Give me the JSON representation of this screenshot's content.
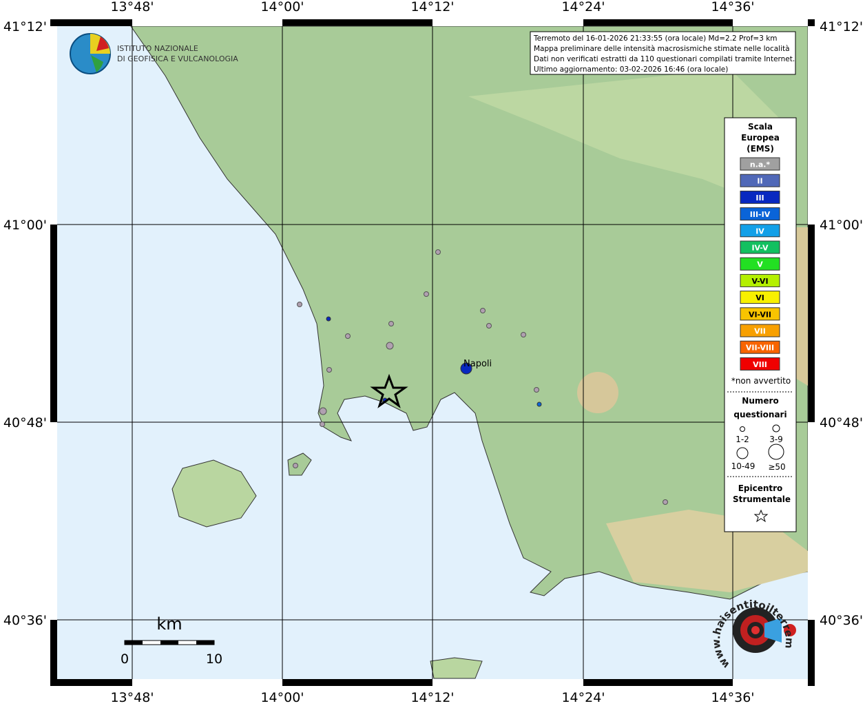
{
  "header": {
    "institute": [
      "ISTITUTO NAZIONALE",
      "DI GEOFISICA E VULCANOLOGIA"
    ],
    "info": [
      "Terremoto del 16-01-2026 21:33:55 (ora locale) Md=2.2 Prof=3 km",
      "Mappa preliminare delle intensità macrosismiche stimate nelle località",
      "Dati non verificati estratti da 110 questionari compilati tramite Internet.",
      "Ultimo aggiornamento: 03-02-2026 16:46 (ora locale)"
    ]
  },
  "map": {
    "lon_labels": [
      "13°48'",
      "14°00'",
      "14°12'",
      "14°24'",
      "14°36'"
    ],
    "lat_labels": [
      "41°12'",
      "41°00'",
      "40°48'",
      "40°36'"
    ],
    "city": "Napoli",
    "scale_bar": {
      "unit": "km",
      "labels": [
        "0",
        "10"
      ]
    },
    "site": "www.haisentitoilterremoto.it"
  },
  "legend": {
    "title": [
      "Scala",
      "Europea",
      "(EMS)"
    ],
    "classes": [
      {
        "label": "n.a.*",
        "color": "#a0a0a0"
      },
      {
        "label": "II",
        "color": "#5068b8"
      },
      {
        "label": "III",
        "color": "#0828c0"
      },
      {
        "label": "III-IV",
        "color": "#0a64d8"
      },
      {
        "label": "IV",
        "color": "#12a0e8"
      },
      {
        "label": "IV-V",
        "color": "#12c060"
      },
      {
        "label": "V",
        "color": "#22e022"
      },
      {
        "label": "V-VI",
        "color": "#b4f000"
      },
      {
        "label": "VI",
        "color": "#f8f000"
      },
      {
        "label": "VI-VII",
        "color": "#f8c400"
      },
      {
        "label": "VII",
        "color": "#f8a000"
      },
      {
        "label": "VII-VIII",
        "color": "#f86400"
      },
      {
        "label": "VIII",
        "color": "#f00000"
      }
    ],
    "note": "*non avvertito",
    "count_title": [
      "Numero",
      "questionari"
    ],
    "count_labels": [
      "1-2",
      "3-9",
      "10-49",
      "≥50"
    ],
    "epicenter": [
      "Epicentro",
      "Strumentale"
    ]
  }
}
